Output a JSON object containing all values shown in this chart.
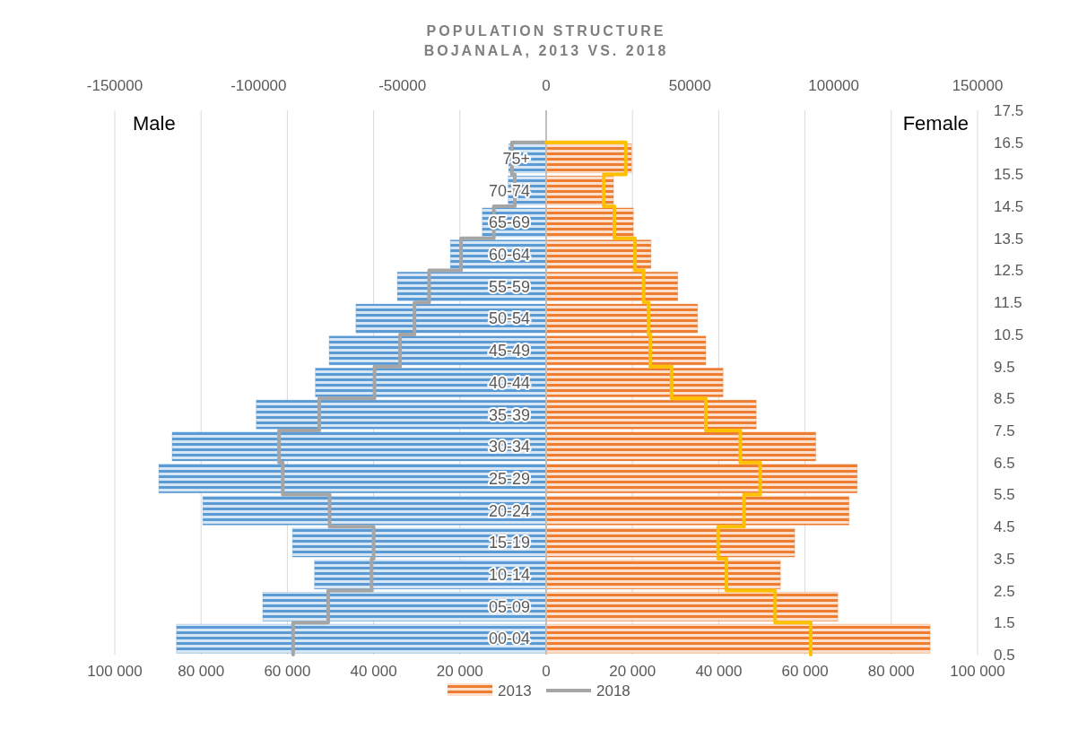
{
  "chart_data": {
    "type": "bar",
    "orientation": "horizontal",
    "title": "POPULATION STRUCTURE",
    "subtitle": "BOJANALA, 2013 VS. 2018",
    "categories": [
      "75+",
      "70-74",
      "65-69",
      "60-64",
      "55-59",
      "50-54",
      "45-49",
      "40-44",
      "35-39",
      "30-34",
      "25-29",
      "20-24",
      "15-19",
      "10-14",
      "05-09",
      "00-04"
    ],
    "series": [
      {
        "color": "#5b9bd5",
        "values": [
          -8700,
          -8800,
          -14800,
          -22200,
          -34500,
          -44100,
          -50300,
          -53500,
          -67200,
          -86700,
          -89800,
          -79600,
          -58800,
          -53700,
          -65700,
          -85700
        ]
      },
      {
        "name": "2013",
        "color": "#ed7d31",
        "values": [
          19800,
          15600,
          20200,
          24300,
          30500,
          35100,
          37000,
          41000,
          48700,
          62500,
          72100,
          70200,
          57600,
          54300,
          67600,
          89000
        ]
      },
      {
        "name": "2018",
        "type": "step",
        "axis": "x2",
        "color": "#a5a5a5",
        "values": [
          -11900,
          -10900,
          -18200,
          -29600,
          -40700,
          -45800,
          -50800,
          -59700,
          -78900,
          -92900,
          -91600,
          -75300,
          -60000,
          -60700,
          -75800,
          -88000
        ]
      },
      {
        "type": "step",
        "axis": "x2",
        "color": "#ffc000",
        "values": [
          27700,
          20000,
          23700,
          30900,
          33900,
          35600,
          36200,
          43600,
          55500,
          67500,
          74400,
          68800,
          59800,
          62700,
          79600,
          92000
        ]
      }
    ],
    "xlim": [
      -100000,
      100000
    ],
    "xticks": [
      {
        "value": -100000,
        "label": "100 000"
      },
      {
        "value": -80000,
        "label": "80 000"
      },
      {
        "value": -60000,
        "label": "60 000"
      },
      {
        "value": -40000,
        "label": "40 000"
      },
      {
        "value": -20000,
        "label": "20 000"
      },
      0,
      {
        "value": 20000,
        "label": "20 000"
      },
      {
        "value": 40000,
        "label": "40 000"
      },
      {
        "value": 60000,
        "label": "60 000"
      },
      {
        "value": 80000,
        "label": "80 000"
      },
      {
        "value": 100000,
        "label": "100 000"
      }
    ],
    "x2lim": [
      -150000,
      150000
    ],
    "x2ticks": [
      -150000,
      -100000,
      -50000,
      0,
      50000,
      100000,
      150000
    ],
    "y2lim": [
      0.5,
      17.5
    ],
    "y2ticks": [
      0.5,
      1.5,
      2.5,
      3.5,
      4.5,
      5.5,
      6.5,
      7.5,
      8.5,
      9.5,
      10.5,
      11.5,
      12.5,
      13.5,
      14.5,
      15.5,
      16.5,
      17.5
    ],
    "annotations": [
      "Male",
      "Female"
    ],
    "stacked": true,
    "grid": "x",
    "legend": "bottom"
  }
}
